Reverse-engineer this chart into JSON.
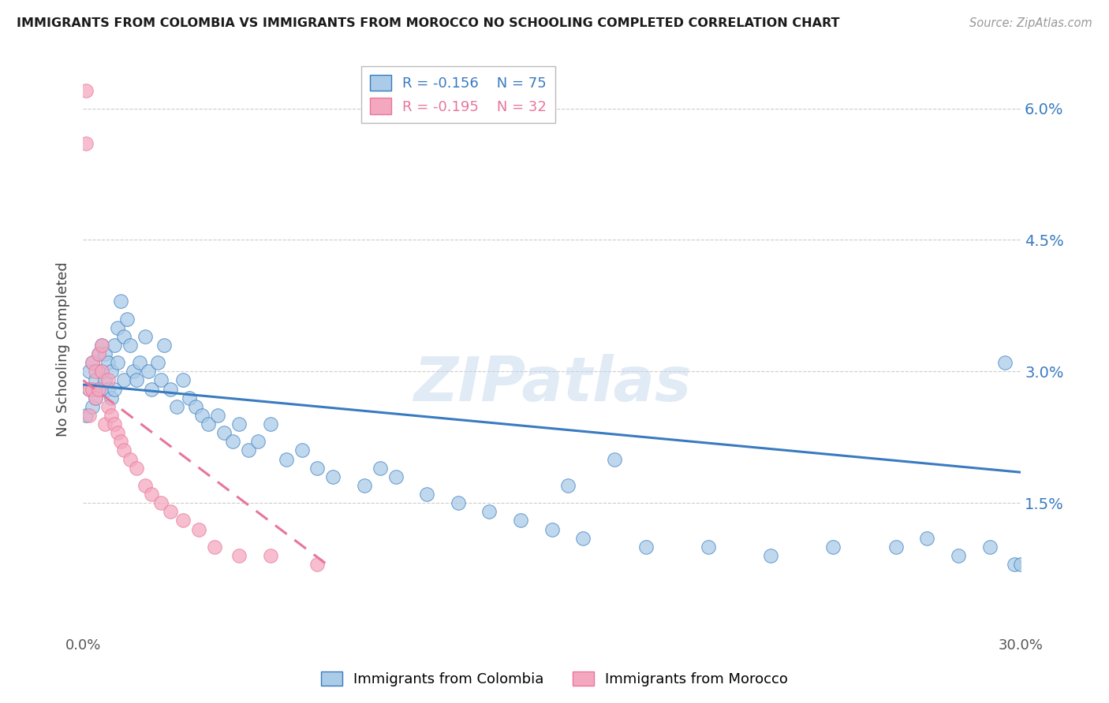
{
  "title": "IMMIGRANTS FROM COLOMBIA VS IMMIGRANTS FROM MOROCCO NO SCHOOLING COMPLETED CORRELATION CHART",
  "source": "Source: ZipAtlas.com",
  "ylabel_label": "No Schooling Completed",
  "ylabel_ticks": [
    "1.5%",
    "3.0%",
    "4.5%",
    "6.0%"
  ],
  "yticks": [
    0.015,
    0.03,
    0.045,
    0.06
  ],
  "xlim": [
    0.0,
    0.3
  ],
  "ylim": [
    0.0,
    0.065
  ],
  "xtick_labels": [
    "0.0%",
    "30.0%"
  ],
  "xtick_vals": [
    0.0,
    0.3
  ],
  "legend_colombia_R": "R = -0.156",
  "legend_colombia_N": "N = 75",
  "legend_morocco_R": "R = -0.195",
  "legend_morocco_N": "N = 32",
  "color_colombia_fill": "#aacce8",
  "color_morocco_fill": "#f4a8c0",
  "color_line_colombia": "#3a7bbf",
  "color_line_morocco": "#e8769a",
  "watermark_text": "ZIPatlas",
  "colombia_x": [
    0.001,
    0.002,
    0.002,
    0.003,
    0.003,
    0.004,
    0.004,
    0.005,
    0.005,
    0.006,
    0.006,
    0.007,
    0.007,
    0.008,
    0.008,
    0.009,
    0.009,
    0.01,
    0.01,
    0.011,
    0.011,
    0.012,
    0.013,
    0.013,
    0.014,
    0.015,
    0.016,
    0.017,
    0.018,
    0.02,
    0.021,
    0.022,
    0.024,
    0.025,
    0.026,
    0.028,
    0.03,
    0.032,
    0.034,
    0.036,
    0.038,
    0.04,
    0.043,
    0.045,
    0.048,
    0.05,
    0.053,
    0.056,
    0.06,
    0.065,
    0.07,
    0.075,
    0.08,
    0.09,
    0.095,
    0.1,
    0.11,
    0.12,
    0.13,
    0.14,
    0.15,
    0.16,
    0.18,
    0.2,
    0.22,
    0.24,
    0.26,
    0.27,
    0.28,
    0.29,
    0.295,
    0.298,
    0.3,
    0.155,
    0.17
  ],
  "colombia_y": [
    0.025,
    0.028,
    0.03,
    0.026,
    0.031,
    0.027,
    0.029,
    0.032,
    0.028,
    0.033,
    0.03,
    0.029,
    0.032,
    0.028,
    0.031,
    0.027,
    0.03,
    0.033,
    0.028,
    0.031,
    0.035,
    0.038,
    0.034,
    0.029,
    0.036,
    0.033,
    0.03,
    0.029,
    0.031,
    0.034,
    0.03,
    0.028,
    0.031,
    0.029,
    0.033,
    0.028,
    0.026,
    0.029,
    0.027,
    0.026,
    0.025,
    0.024,
    0.025,
    0.023,
    0.022,
    0.024,
    0.021,
    0.022,
    0.024,
    0.02,
    0.021,
    0.019,
    0.018,
    0.017,
    0.019,
    0.018,
    0.016,
    0.015,
    0.014,
    0.013,
    0.012,
    0.011,
    0.01,
    0.01,
    0.009,
    0.01,
    0.01,
    0.011,
    0.009,
    0.01,
    0.031,
    0.008,
    0.008,
    0.017,
    0.02
  ],
  "morocco_x": [
    0.001,
    0.001,
    0.002,
    0.002,
    0.003,
    0.003,
    0.004,
    0.004,
    0.005,
    0.005,
    0.006,
    0.006,
    0.007,
    0.008,
    0.008,
    0.009,
    0.01,
    0.011,
    0.012,
    0.013,
    0.015,
    0.017,
    0.02,
    0.022,
    0.025,
    0.028,
    0.032,
    0.037,
    0.042,
    0.05,
    0.06,
    0.075
  ],
  "morocco_y": [
    0.062,
    0.056,
    0.028,
    0.025,
    0.031,
    0.028,
    0.03,
    0.027,
    0.032,
    0.028,
    0.033,
    0.03,
    0.024,
    0.029,
    0.026,
    0.025,
    0.024,
    0.023,
    0.022,
    0.021,
    0.02,
    0.019,
    0.017,
    0.016,
    0.015,
    0.014,
    0.013,
    0.012,
    0.01,
    0.009,
    0.009,
    0.008
  ],
  "colombia_line_x": [
    0.0,
    0.3
  ],
  "colombia_line_y": [
    0.0285,
    0.0185
  ],
  "morocco_line_x": [
    0.0,
    0.078
  ],
  "morocco_line_y": [
    0.029,
    0.008
  ]
}
